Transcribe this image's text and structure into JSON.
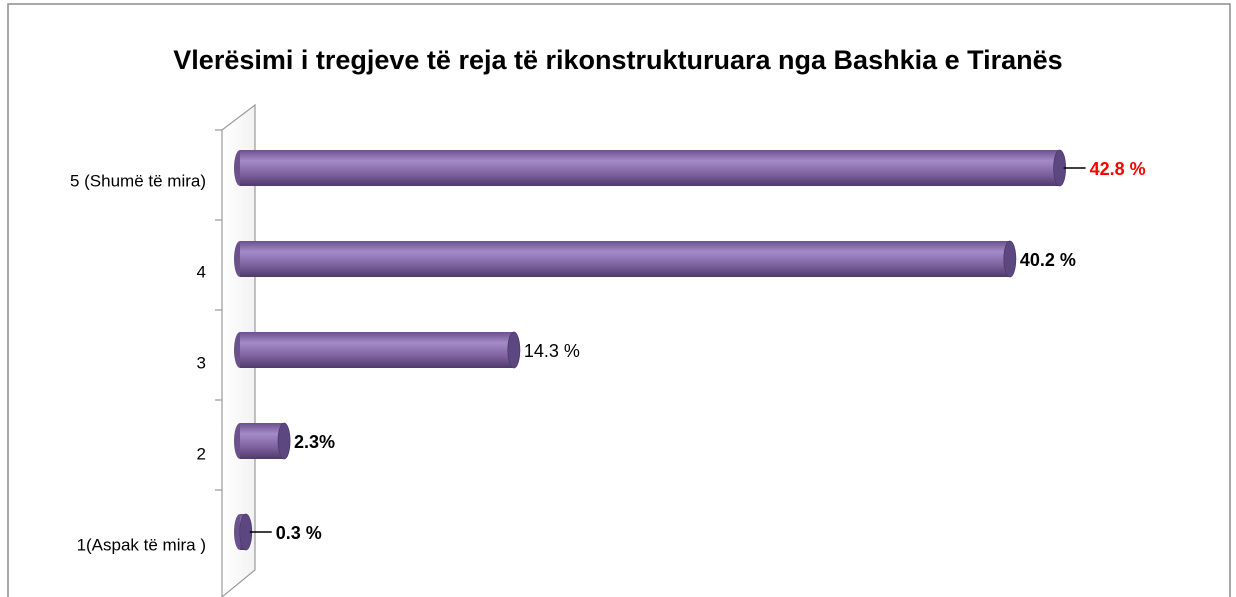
{
  "chart_data": {
    "type": "bar",
    "title": "Vlerësimi i tregjeve të reja të rikonstrukturuara nga Bashkia e Tiranës",
    "categories": [
      "5 (Shumë të mira)",
      "4",
      "3",
      "2",
      "1(Aspak të mira )"
    ],
    "values": [
      42.8,
      40.2,
      14.3,
      2.3,
      0.3
    ],
    "value_labels": [
      "42.8 %",
      "40.2 %",
      "14.3 %",
      "2.3%",
      "0.3 %"
    ],
    "value_label_colors": [
      "#ff0000",
      "#000000",
      "#000000",
      "#000000",
      "#000000"
    ],
    "value_label_weights": [
      "bold",
      "bold",
      "normal",
      "bold",
      "bold"
    ],
    "color": "#8064a2"
  }
}
